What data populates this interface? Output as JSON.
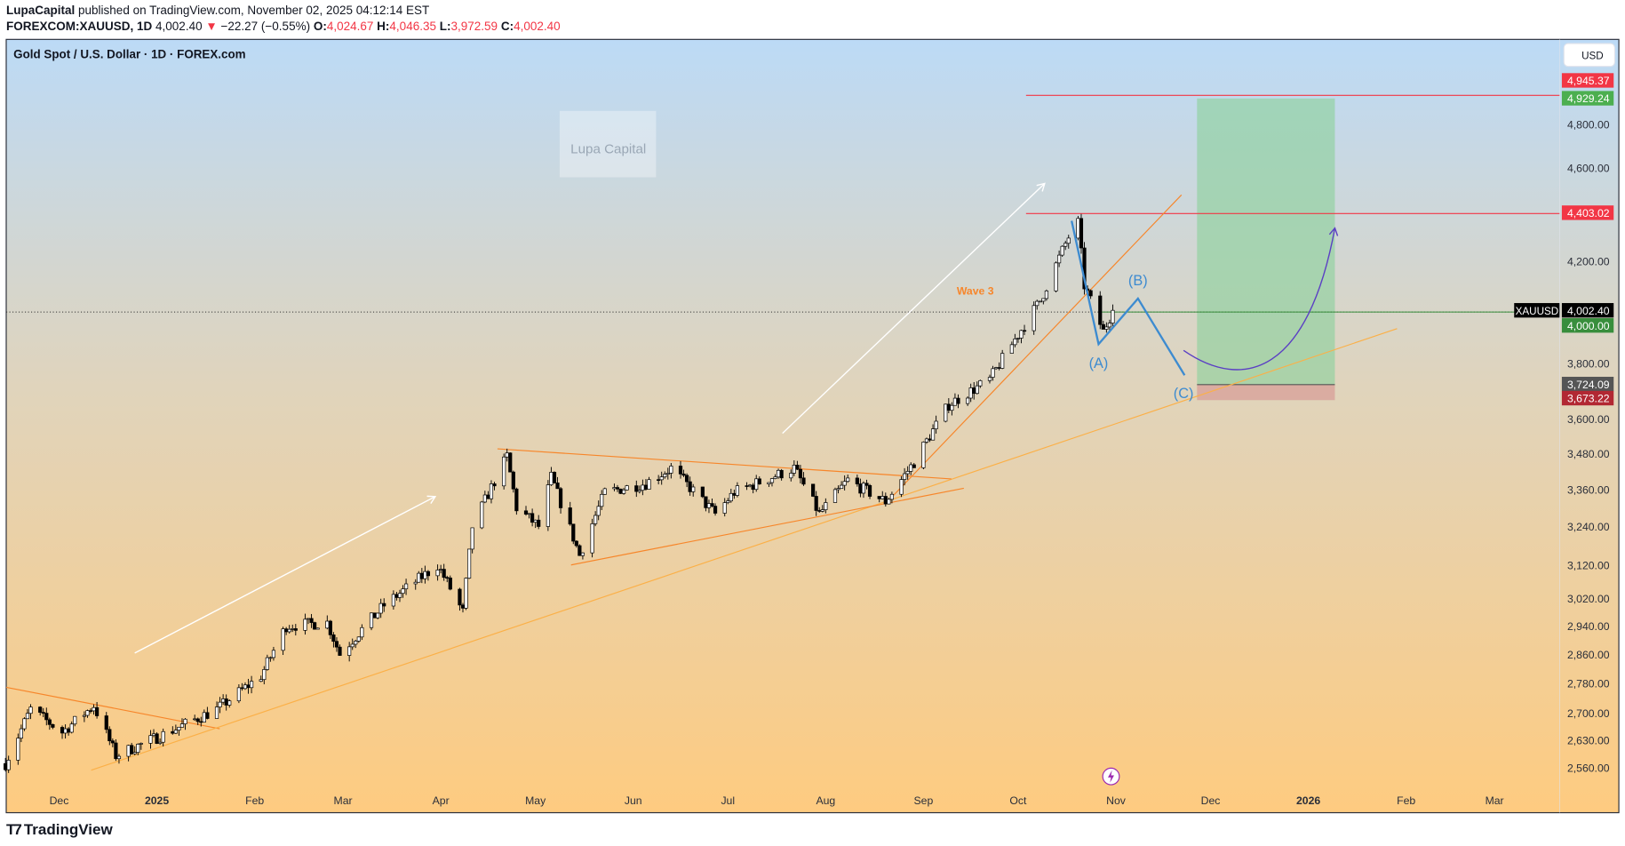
{
  "header": {
    "author": "LupaCapital",
    "published": "published on TradingView.com, November 02, 2025 04:12:14 EST",
    "symbol": "FOREXCOM:XAUUSD, 1D",
    "last": "4,002.40",
    "down_arrow": "▼",
    "change": "−22.27 (−0.55%)",
    "o_label": "O:",
    "o": "4,024.67",
    "h_label": "H:",
    "h": "4,046.35",
    "l_label": "L:",
    "l": "3,972.59",
    "c_label": "C:",
    "c": "4,002.40"
  },
  "chart": {
    "title": "Gold Spot / U.S. Dollar · 1D · FOREX.com",
    "currency_button": "USD",
    "watermark": "Lupa Capital",
    "scale": "log",
    "price_ticks": [
      "4,800.00",
      "4,600.00",
      "4,200.00",
      "3,800.00",
      "3,600.00",
      "3,480.00",
      "3,360.00",
      "3,240.00",
      "3,120.00",
      "3,020.00",
      "2,940.00",
      "2,860.00",
      "2,780.00",
      "2,700.00",
      "2,630.00",
      "2,560.00"
    ],
    "price_tick_values": [
      4800,
      4600,
      4200,
      3800,
      3600,
      3480,
      3360,
      3240,
      3120,
      3020,
      2940,
      2860,
      2780,
      2700,
      2630,
      2560
    ],
    "price_badges": [
      {
        "text": "4,945.37",
        "value": 4945.37,
        "color": "#f23645"
      },
      {
        "text": "4,929.24",
        "value": 4929.24,
        "color": "#4caf50"
      },
      {
        "text": "4,403.02",
        "value": 4403.02,
        "color": "#f23645"
      },
      {
        "text": "4,002.40",
        "value": 4002.4,
        "color": "#000000",
        "symbol": "XAUUSD"
      },
      {
        "text": "4,000.00",
        "value": 4000.0,
        "color": "#388e3c"
      },
      {
        "text": "3,724.09",
        "value": 3724.09,
        "color": "#555555"
      },
      {
        "text": "3,673.22",
        "value": 3673.22,
        "color": "#b22833"
      }
    ],
    "time_ticks": [
      {
        "label": "Dec",
        "date": "2024-12-01"
      },
      {
        "label": "2025",
        "date": "2025-01-01"
      },
      {
        "label": "Feb",
        "date": "2025-02-01"
      },
      {
        "label": "Mar",
        "date": "2025-03-01"
      },
      {
        "label": "Apr",
        "date": "2025-04-01"
      },
      {
        "label": "May",
        "date": "2025-05-01"
      },
      {
        "label": "Jun",
        "date": "2025-06-01"
      },
      {
        "label": "Jul",
        "date": "2025-07-01"
      },
      {
        "label": "Aug",
        "date": "2025-08-01"
      },
      {
        "label": "Sep",
        "date": "2025-09-01"
      },
      {
        "label": "Oct",
        "date": "2025-10-01"
      },
      {
        "label": "Nov",
        "date": "2025-11-01"
      },
      {
        "label": "Dec",
        "date": "2025-12-01"
      },
      {
        "label": "2026",
        "date": "2026-01-01"
      },
      {
        "label": "Feb",
        "date": "2026-02-01"
      },
      {
        "label": "Mar",
        "date": "2026-03-01"
      }
    ],
    "annotations": {
      "wave3": "Wave 3",
      "a": "(A)",
      "b": "(B)",
      "c": "(C)"
    },
    "colors": {
      "bg_top": "#bcdaf6",
      "bg_bottom": "#fecb80",
      "target": "#f23645",
      "profit_zone": "#8fd19e",
      "loss_zone": "#d8a49c",
      "elliott": "#3d8bd0",
      "trend": "#f7862a"
    },
    "price_path": [
      [
        "2024-11-14",
        2570
      ],
      [
        "2024-11-22",
        2710
      ],
      [
        "2024-12-02",
        2650
      ],
      [
        "2024-12-12",
        2720
      ],
      [
        "2024-12-19",
        2590
      ],
      [
        "2025-01-02",
        2640
      ],
      [
        "2025-01-20",
        2710
      ],
      [
        "2025-02-03",
        2800
      ],
      [
        "2025-02-11",
        2940
      ],
      [
        "2025-02-24",
        2950
      ],
      [
        "2025-02-28",
        2860
      ],
      [
        "2025-03-14",
        3000
      ],
      [
        "2025-03-31",
        3120
      ],
      [
        "2025-04-08",
        2980
      ],
      [
        "2025-04-11",
        3240
      ],
      [
        "2025-04-22",
        3470
      ],
      [
        "2025-04-25",
        3300
      ],
      [
        "2025-05-02",
        3240
      ],
      [
        "2025-05-06",
        3400
      ],
      [
        "2025-05-15",
        3150
      ],
      [
        "2025-05-23",
        3350
      ],
      [
        "2025-06-05",
        3380
      ],
      [
        "2025-06-13",
        3430
      ],
      [
        "2025-06-27",
        3280
      ],
      [
        "2025-07-03",
        3350
      ],
      [
        "2025-07-22",
        3430
      ],
      [
        "2025-07-30",
        3280
      ],
      [
        "2025-08-08",
        3390
      ],
      [
        "2025-08-20",
        3320
      ],
      [
        "2025-08-29",
        3450
      ],
      [
        "2025-09-09",
        3650
      ],
      [
        "2025-09-22",
        3740
      ],
      [
        "2025-10-08",
        4040
      ],
      [
        "2025-10-17",
        4300
      ],
      [
        "2025-10-20",
        4360
      ],
      [
        "2025-10-22",
        4100
      ],
      [
        "2025-10-28",
        3920
      ],
      [
        "2025-10-31",
        4002.4
      ]
    ]
  },
  "footer": {
    "brand": "TradingView"
  }
}
